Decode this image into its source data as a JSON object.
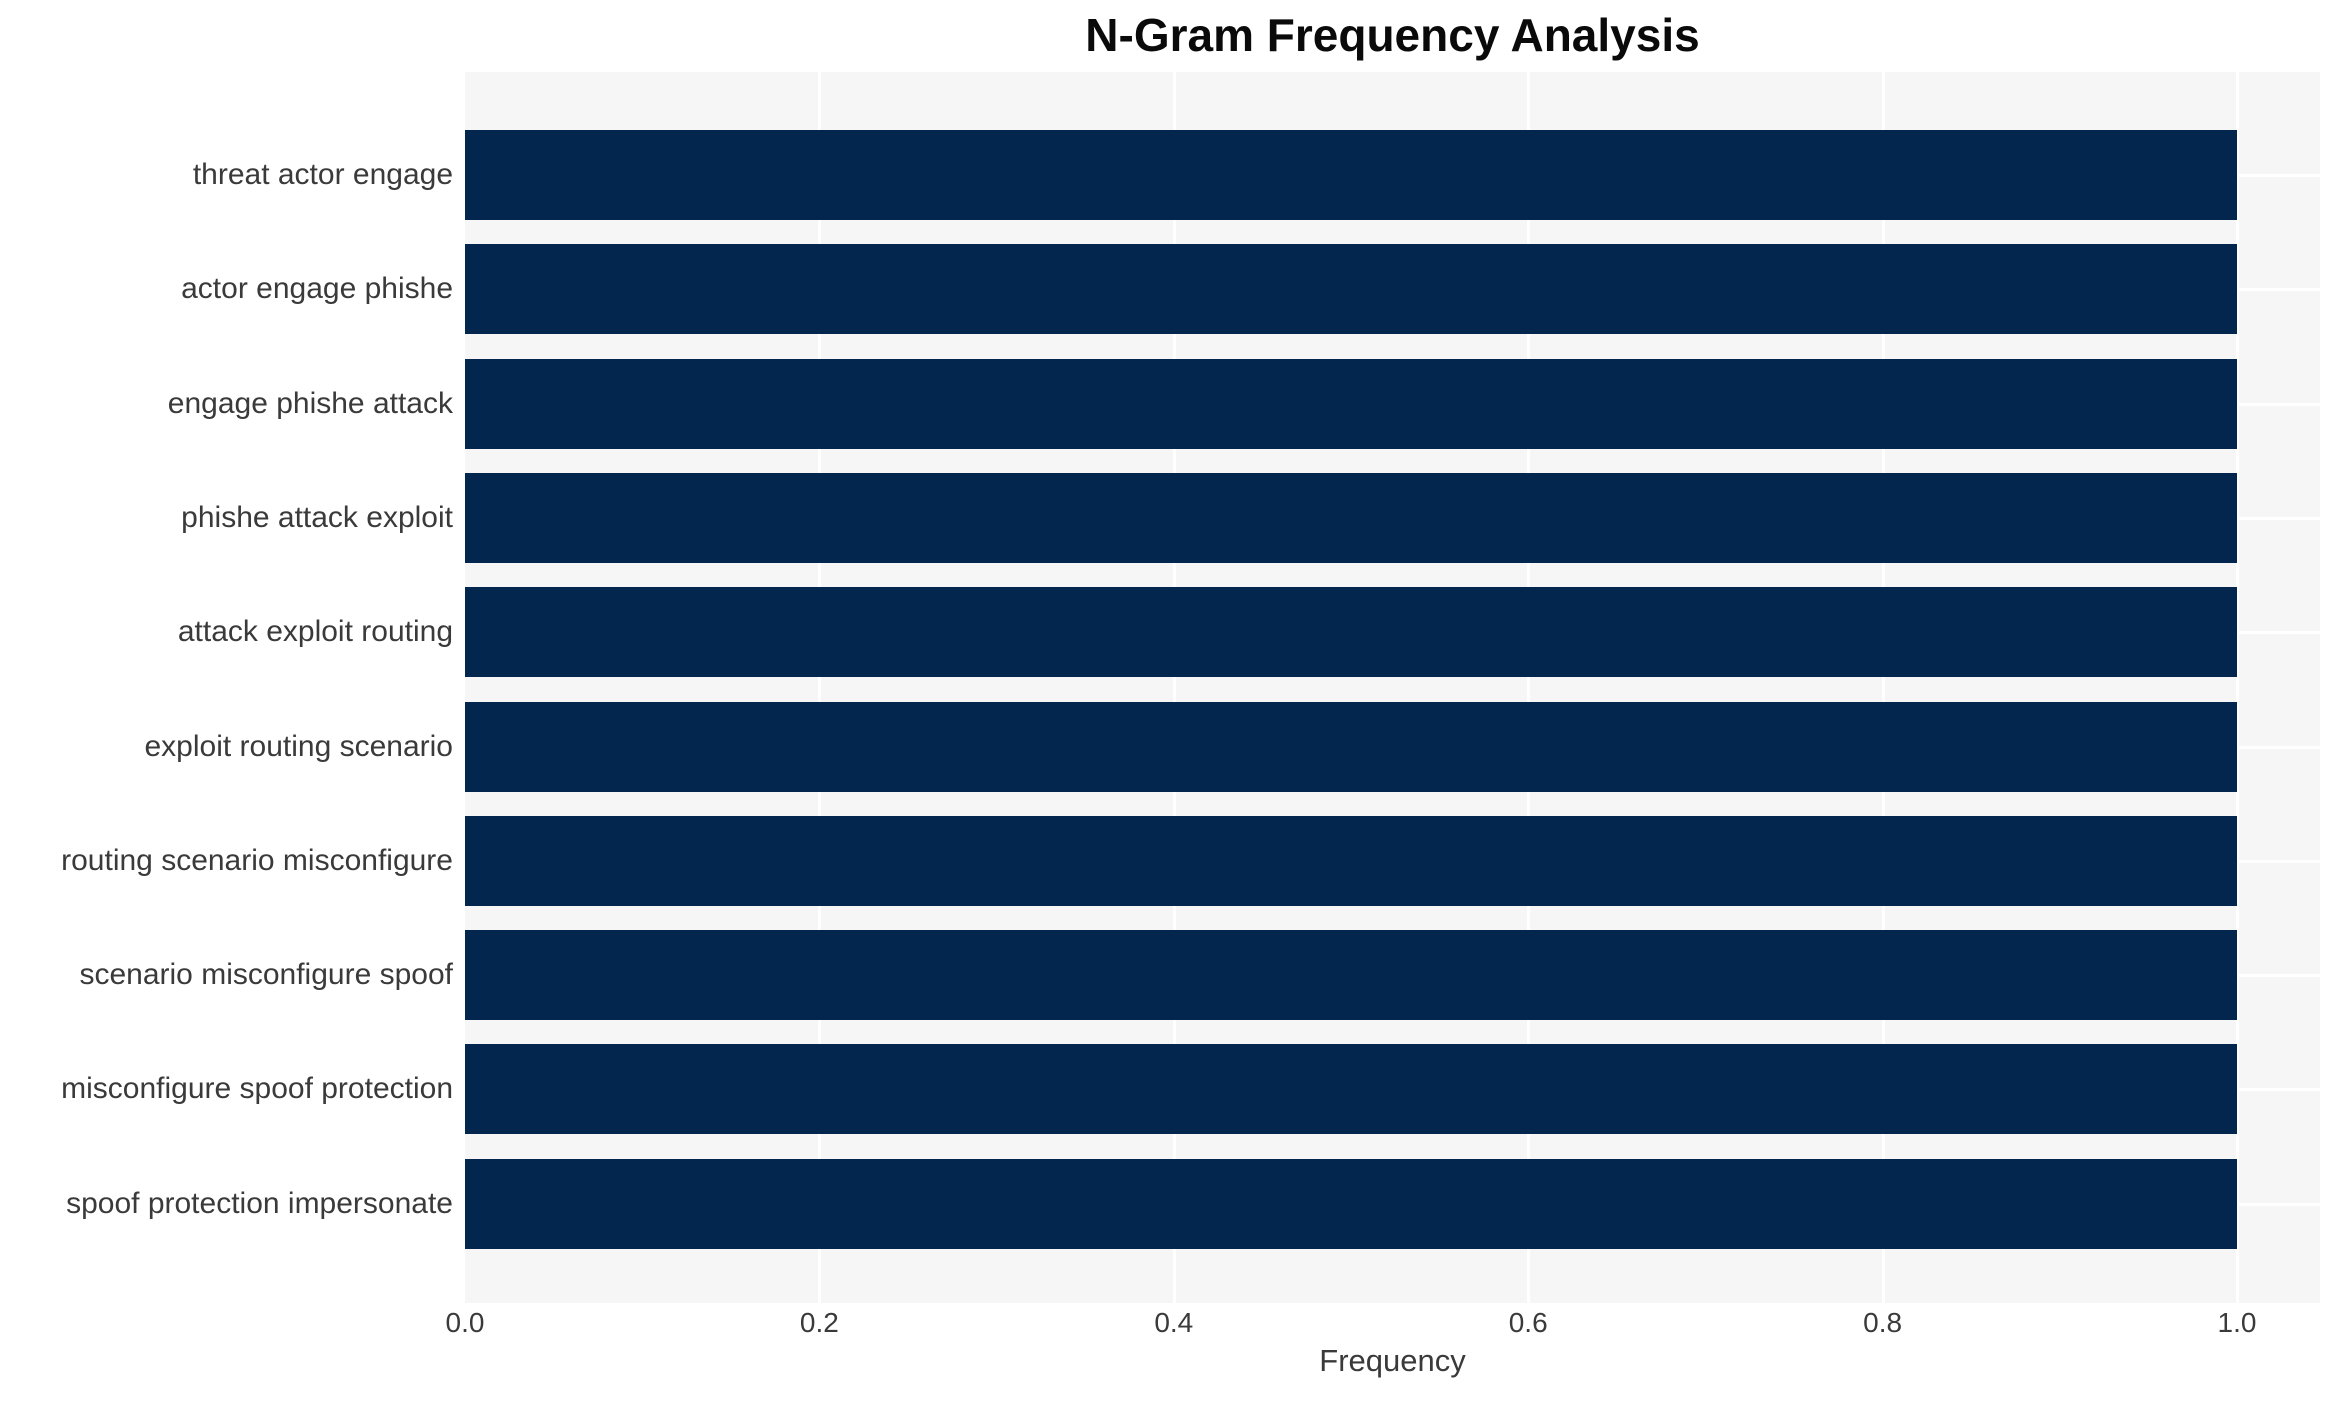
{
  "chart_data": {
    "type": "bar",
    "orientation": "horizontal",
    "title": "N-Gram Frequency Analysis",
    "xlabel": "Frequency",
    "ylabel": "",
    "categories": [
      "threat actor engage",
      "actor engage phishe",
      "engage phishe attack",
      "phishe attack exploit",
      "attack exploit routing",
      "exploit routing scenario",
      "routing scenario misconfigure",
      "scenario misconfigure spoof",
      "misconfigure spoof protection",
      "spoof protection impersonate"
    ],
    "values": [
      1.0,
      1.0,
      1.0,
      1.0,
      1.0,
      1.0,
      1.0,
      1.0,
      1.0,
      1.0
    ],
    "x_ticks": [
      "0.0",
      "0.2",
      "0.4",
      "0.6",
      "0.8",
      "1.0"
    ],
    "x_tick_values": [
      0.0,
      0.2,
      0.4,
      0.6,
      0.8,
      1.0
    ],
    "xlim": [
      0.0,
      1.048
    ],
    "grid": "major gridlines on both axes, white on light-gray plot background",
    "legend": "none",
    "colors": {
      "bar": "#03264e",
      "plot_background": "#f6f6f6",
      "figure_background": "#ffffff",
      "gridline": "#ffffff",
      "tick_text": "#3a3a3a",
      "title_text": "#0a0a0a"
    }
  }
}
